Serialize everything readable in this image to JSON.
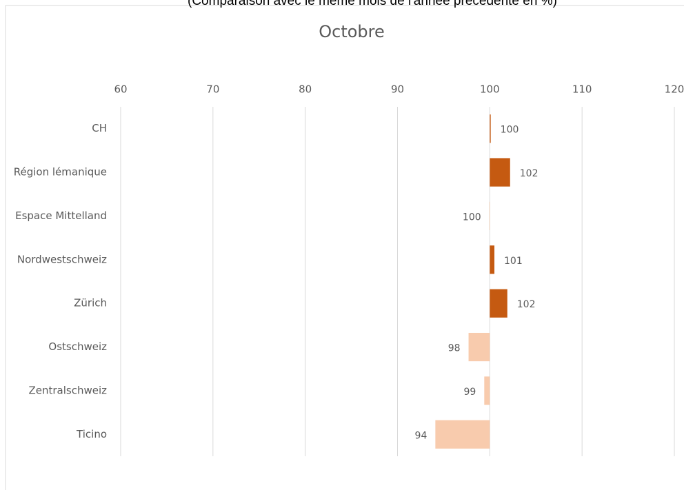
{
  "chart_data": {
    "type": "hbar",
    "subtitle": "(Comparaison avec le même mois de l'année précédente en %)",
    "title": "Octobre",
    "categories": [
      "CH",
      "Région lémanique",
      "Espace Mittelland",
      "Nordwestschweiz",
      "Zürich",
      "Ostschweiz",
      "Zentralschweiz",
      "Ticino"
    ],
    "values": [
      100.1,
      102.2,
      99.95,
      100.5,
      101.9,
      97.7,
      99.4,
      94.1
    ],
    "value_labels": [
      "100",
      "102",
      "100",
      "101",
      "102",
      "98",
      "99",
      "94"
    ],
    "colors": [
      "#c55a11",
      "#c55a11",
      "#f8cbad",
      "#c55a11",
      "#c55a11",
      "#f8cbad",
      "#f8cbad",
      "#f8cbad"
    ],
    "base": 100,
    "xlim": [
      60,
      120
    ],
    "xticks": [
      60,
      70,
      80,
      90,
      100,
      110,
      120
    ],
    "grid": true
  }
}
